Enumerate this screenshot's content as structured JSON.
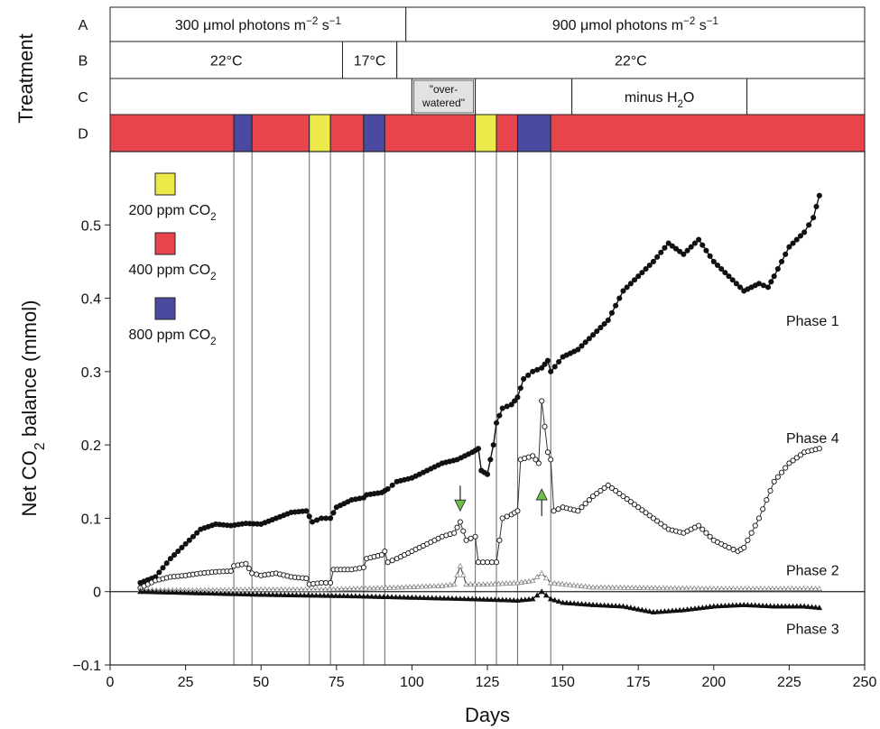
{
  "chart_data": {
    "type": "line",
    "title": "",
    "xlabel": "Days",
    "ylabel_parts": {
      "pre": "Net CO",
      "sub": "2",
      "post": " balance (mmol)"
    },
    "xlim": [
      0,
      250
    ],
    "ylim": [
      -0.1,
      0.6
    ],
    "xticks": [
      0,
      25,
      50,
      75,
      100,
      125,
      150,
      175,
      200,
      225,
      250
    ],
    "yticks": [
      -0.1,
      0,
      0.1,
      0.2,
      0.3,
      0.4,
      0.5
    ],
    "ytick_labels": [
      "−0.1",
      "0",
      "0.1",
      "0.2",
      "0.3",
      "0.4",
      "0.5"
    ],
    "treatment_label": "Treatment",
    "row_labels": [
      "A",
      "B",
      "C",
      "D"
    ],
    "treatments": {
      "A": [
        {
          "start": 0,
          "end": 98,
          "pre": "300 μmol photons m",
          "sup1": "−2",
          "mid": " s",
          "sup2": "−1"
        },
        {
          "start": 98,
          "end": 250,
          "pre": "900 μmol photons m",
          "sup1": "−2",
          "mid": " s",
          "sup2": "−1"
        }
      ],
      "B": [
        {
          "start": 0,
          "end": 77,
          "text": "22°C"
        },
        {
          "start": 77,
          "end": 95,
          "text": "17°C"
        },
        {
          "start": 95,
          "end": 250,
          "text": "22°C"
        }
      ],
      "C": [
        {
          "start": 0,
          "end": 100,
          "text": ""
        },
        {
          "start": 100,
          "end": 121,
          "line1": "\"over-",
          "line2": "watered\"",
          "shaded": true
        },
        {
          "start": 121,
          "end": 153,
          "text": ""
        },
        {
          "start": 153,
          "end": 211,
          "pre": "minus H",
          "sub": "2",
          "post": "O"
        },
        {
          "start": 211,
          "end": 250,
          "text": ""
        }
      ],
      "D": [
        {
          "start": 0,
          "end": 41,
          "co2": "400"
        },
        {
          "start": 41,
          "end": 47,
          "co2": "800"
        },
        {
          "start": 47,
          "end": 66,
          "co2": "400"
        },
        {
          "start": 66,
          "end": 73,
          "co2": "200"
        },
        {
          "start": 73,
          "end": 84,
          "co2": "400"
        },
        {
          "start": 84,
          "end": 91,
          "co2": "800"
        },
        {
          "start": 91,
          "end": 121,
          "co2": "400"
        },
        {
          "start": 121,
          "end": 128,
          "co2": "200"
        },
        {
          "start": 128,
          "end": 135,
          "co2": "400"
        },
        {
          "start": 135,
          "end": 146,
          "co2": "800"
        },
        {
          "start": 146,
          "end": 250,
          "co2": "400"
        }
      ]
    },
    "legend": [
      {
        "co2": "200",
        "color": "#ecea4a",
        "pre": "200 ppm CO",
        "sub": "2"
      },
      {
        "co2": "400",
        "color": "#e8444c",
        "pre": "400 ppm CO",
        "sub": "2"
      },
      {
        "co2": "800",
        "color": "#4a4aa0",
        "pre": "800 ppm CO",
        "sub": "2"
      }
    ],
    "vlines": [
      41,
      47,
      66,
      73,
      84,
      91,
      121,
      128,
      135,
      146
    ],
    "arrows": [
      {
        "x": 116,
        "y": 0.12,
        "direction": "down",
        "color": "#6cc04a"
      },
      {
        "x": 143,
        "y": 0.13,
        "direction": "up",
        "color": "#6cc04a"
      }
    ],
    "series": [
      {
        "name": "Phase 1",
        "marker": "filled-circle",
        "label_at": [
          215,
          0.37
        ],
        "points": [
          [
            10,
            0.012
          ],
          [
            15,
            0.02
          ],
          [
            20,
            0.045
          ],
          [
            25,
            0.065
          ],
          [
            30,
            0.085
          ],
          [
            35,
            0.092
          ],
          [
            40,
            0.09
          ],
          [
            45,
            0.093
          ],
          [
            50,
            0.092
          ],
          [
            55,
            0.1
          ],
          [
            60,
            0.108
          ],
          [
            65,
            0.11
          ],
          [
            67,
            0.095
          ],
          [
            70,
            0.1
          ],
          [
            73,
            0.1
          ],
          [
            75,
            0.115
          ],
          [
            80,
            0.125
          ],
          [
            84,
            0.128
          ],
          [
            85,
            0.132
          ],
          [
            90,
            0.135
          ],
          [
            92,
            0.14
          ],
          [
            95,
            0.15
          ],
          [
            100,
            0.155
          ],
          [
            105,
            0.165
          ],
          [
            110,
            0.175
          ],
          [
            115,
            0.18
          ],
          [
            120,
            0.19
          ],
          [
            122,
            0.195
          ],
          [
            123,
            0.165
          ],
          [
            125,
            0.16
          ],
          [
            127,
            0.2
          ],
          [
            128,
            0.23
          ],
          [
            130,
            0.25
          ],
          [
            133,
            0.255
          ],
          [
            135,
            0.265
          ],
          [
            137,
            0.29
          ],
          [
            140,
            0.3
          ],
          [
            143,
            0.305
          ],
          [
            145,
            0.315
          ],
          [
            146,
            0.3
          ],
          [
            150,
            0.32
          ],
          [
            155,
            0.33
          ],
          [
            160,
            0.35
          ],
          [
            165,
            0.37
          ],
          [
            170,
            0.41
          ],
          [
            175,
            0.43
          ],
          [
            180,
            0.45
          ],
          [
            185,
            0.475
          ],
          [
            190,
            0.46
          ],
          [
            195,
            0.48
          ],
          [
            200,
            0.45
          ],
          [
            205,
            0.43
          ],
          [
            210,
            0.41
          ],
          [
            215,
            0.42
          ],
          [
            218,
            0.415
          ],
          [
            220,
            0.43
          ],
          [
            225,
            0.47
          ],
          [
            230,
            0.49
          ],
          [
            233,
            0.51
          ],
          [
            235,
            0.54
          ]
        ]
      },
      {
        "name": "Phase 4",
        "marker": "open-circle",
        "label_at": [
          215,
          0.21
        ],
        "points": [
          [
            10,
            0.005
          ],
          [
            15,
            0.015
          ],
          [
            20,
            0.02
          ],
          [
            25,
            0.022
          ],
          [
            30,
            0.025
          ],
          [
            35,
            0.027
          ],
          [
            40,
            0.028
          ],
          [
            41,
            0.035
          ],
          [
            45,
            0.038
          ],
          [
            47,
            0.025
          ],
          [
            50,
            0.022
          ],
          [
            55,
            0.025
          ],
          [
            60,
            0.02
          ],
          [
            65,
            0.018
          ],
          [
            66,
            0.01
          ],
          [
            70,
            0.012
          ],
          [
            73,
            0.012
          ],
          [
            74,
            0.03
          ],
          [
            80,
            0.03
          ],
          [
            84,
            0.033
          ],
          [
            85,
            0.045
          ],
          [
            90,
            0.05
          ],
          [
            91,
            0.055
          ],
          [
            92,
            0.04
          ],
          [
            95,
            0.045
          ],
          [
            100,
            0.055
          ],
          [
            105,
            0.065
          ],
          [
            110,
            0.075
          ],
          [
            114,
            0.08
          ],
          [
            116,
            0.095
          ],
          [
            118,
            0.07
          ],
          [
            121,
            0.075
          ],
          [
            122,
            0.04
          ],
          [
            125,
            0.04
          ],
          [
            128,
            0.04
          ],
          [
            130,
            0.1
          ],
          [
            133,
            0.105
          ],
          [
            135,
            0.11
          ],
          [
            136,
            0.18
          ],
          [
            140,
            0.185
          ],
          [
            142,
            0.175
          ],
          [
            143,
            0.26
          ],
          [
            145,
            0.19
          ],
          [
            146,
            0.18
          ],
          [
            147,
            0.11
          ],
          [
            150,
            0.115
          ],
          [
            155,
            0.11
          ],
          [
            160,
            0.13
          ],
          [
            165,
            0.145
          ],
          [
            170,
            0.13
          ],
          [
            175,
            0.115
          ],
          [
            180,
            0.1
          ],
          [
            185,
            0.085
          ],
          [
            190,
            0.08
          ],
          [
            195,
            0.09
          ],
          [
            200,
            0.07
          ],
          [
            205,
            0.06
          ],
          [
            208,
            0.055
          ],
          [
            210,
            0.06
          ],
          [
            215,
            0.1
          ],
          [
            220,
            0.15
          ],
          [
            225,
            0.175
          ],
          [
            230,
            0.19
          ],
          [
            235,
            0.195
          ]
        ]
      },
      {
        "name": "Phase 2",
        "marker": "open-triangle",
        "label_at": [
          215,
          0.03
        ],
        "points": [
          [
            10,
            0.002
          ],
          [
            30,
            0.002
          ],
          [
            50,
            0.003
          ],
          [
            70,
            0.003
          ],
          [
            90,
            0.005
          ],
          [
            110,
            0.008
          ],
          [
            114,
            0.01
          ],
          [
            116,
            0.035
          ],
          [
            118,
            0.01
          ],
          [
            125,
            0.01
          ],
          [
            135,
            0.012
          ],
          [
            140,
            0.015
          ],
          [
            143,
            0.025
          ],
          [
            146,
            0.012
          ],
          [
            160,
            0.006
          ],
          [
            200,
            0.004
          ],
          [
            235,
            0.004
          ]
        ]
      },
      {
        "name": "Phase 3",
        "marker": "filled-triangle",
        "label_at": [
          215,
          -0.05
        ],
        "points": [
          [
            10,
            0.0
          ],
          [
            30,
            -0.002
          ],
          [
            50,
            -0.004
          ],
          [
            80,
            -0.006
          ],
          [
            100,
            -0.008
          ],
          [
            120,
            -0.01
          ],
          [
            135,
            -0.012
          ],
          [
            140,
            -0.01
          ],
          [
            143,
            0.0
          ],
          [
            146,
            -0.01
          ],
          [
            150,
            -0.015
          ],
          [
            160,
            -0.018
          ],
          [
            170,
            -0.02
          ],
          [
            180,
            -0.028
          ],
          [
            190,
            -0.025
          ],
          [
            200,
            -0.02
          ],
          [
            210,
            -0.018
          ],
          [
            220,
            -0.02
          ],
          [
            230,
            -0.02
          ],
          [
            235,
            -0.022
          ]
        ]
      }
    ]
  }
}
